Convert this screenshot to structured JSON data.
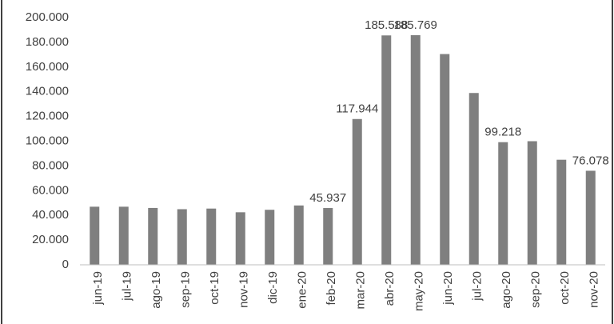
{
  "chart_data": {
    "type": "bar",
    "categories": [
      "jun-19",
      "jul-19",
      "ago-19",
      "sep-19",
      "oct-19",
      "nov-19",
      "dic-19",
      "ene-20",
      "feb-20",
      "mar-20",
      "abr-20",
      "may-20",
      "jun-20",
      "jul-20",
      "ago-20",
      "sep-20",
      "oct-20",
      "nov-20"
    ],
    "values": [
      47000,
      47000,
      46000,
      45000,
      45500,
      42500,
      44500,
      48000,
      45937,
      117944,
      185588,
      185769,
      170500,
      139000,
      99218,
      100000,
      85000,
      76078
    ],
    "value_labels": [
      null,
      null,
      null,
      null,
      null,
      null,
      null,
      null,
      "45.937",
      "117.944",
      "185.588",
      "185.769",
      null,
      null,
      "99.218",
      null,
      null,
      "76.078"
    ],
    "color": "#7f7f7f",
    "ylim": [
      0,
      200000
    ],
    "yticks": [
      0,
      {
        "value": 20000,
        "label": "20.000"
      },
      {
        "value": 40000,
        "label": "40.000"
      },
      {
        "value": 60000,
        "label": "60.000"
      },
      {
        "value": 80000,
        "label": "80.000"
      },
      {
        "value": 100000,
        "label": "100.000"
      },
      {
        "value": 120000,
        "label": "120.000"
      },
      {
        "value": 140000,
        "label": "140.000"
      },
      {
        "value": 160000,
        "label": "160.000"
      },
      {
        "value": 180000,
        "label": "180.000"
      },
      {
        "value": 200000,
        "label": "200.000"
      }
    ],
    "grid": false
  }
}
